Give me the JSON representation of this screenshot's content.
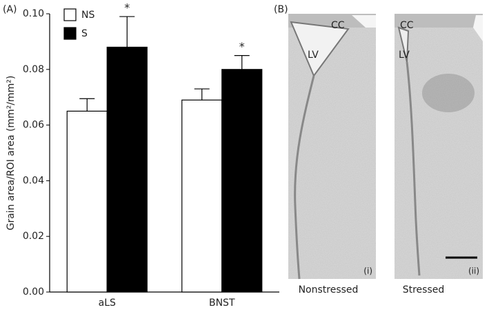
{
  "chart_data": {
    "type": "bar",
    "panel_label": "(A)",
    "y_label": "Grain area/ROI area (mm²/mm²)",
    "categories": [
      "aLS",
      "BNST"
    ],
    "series": [
      {
        "name": "NS",
        "color": "#ffffff",
        "values": [
          0.065,
          0.069
        ],
        "errors": [
          0.0045,
          0.004
        ]
      },
      {
        "name": "S",
        "color": "#000000",
        "values": [
          0.088,
          0.08
        ],
        "errors": [
          0.011,
          0.005
        ]
      }
    ],
    "annotations": [
      {
        "text": "*",
        "series": 1,
        "category": 0
      },
      {
        "text": "*",
        "series": 1,
        "category": 1
      }
    ],
    "ylim": [
      0,
      0.1
    ],
    "yticks": [
      {
        "value": 0,
        "label": "0.00"
      },
      {
        "value": 0.02,
        "label": "0.02"
      },
      {
        "value": 0.04,
        "label": "0.04"
      },
      {
        "value": 0.06,
        "label": "0.06"
      },
      {
        "value": 0.08,
        "label": "0.08"
      },
      {
        "value": 0.1,
        "label": "0.10"
      }
    ]
  },
  "panel_b": {
    "label": "(B)",
    "images": [
      {
        "caption": "Nonstressed",
        "tag": "(i)",
        "labels": [
          "CC",
          "LV"
        ]
      },
      {
        "caption": "Stressed",
        "tag": "(ii)",
        "labels": [
          "CC",
          "LV"
        ]
      }
    ]
  }
}
